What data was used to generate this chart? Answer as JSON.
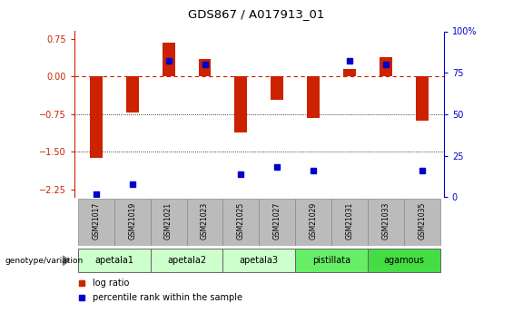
{
  "title": "GDS867 / A017913_01",
  "samples": [
    "GSM21017",
    "GSM21019",
    "GSM21021",
    "GSM21023",
    "GSM21025",
    "GSM21027",
    "GSM21029",
    "GSM21031",
    "GSM21033",
    "GSM21035"
  ],
  "log_ratio": [
    -1.62,
    -0.72,
    0.68,
    0.35,
    -1.12,
    -0.47,
    -0.82,
    0.15,
    0.38,
    -0.88
  ],
  "percentile_rank": [
    2,
    8,
    82,
    80,
    14,
    18,
    16,
    82,
    80,
    16
  ],
  "groups": [
    {
      "name": "apetala1",
      "color": "#ccffcc",
      "samples": [
        0,
        1
      ]
    },
    {
      "name": "apetala2",
      "color": "#ccffcc",
      "samples": [
        2,
        3
      ]
    },
    {
      "name": "apetala3",
      "color": "#ccffcc",
      "samples": [
        4,
        5
      ]
    },
    {
      "name": "pistillata",
      "color": "#66ee66",
      "samples": [
        6,
        7
      ]
    },
    {
      "name": "agamous",
      "color": "#44dd44",
      "samples": [
        8,
        9
      ]
    }
  ],
  "ylim_left": [
    -2.4,
    0.9
  ],
  "ylim_right": [
    0,
    100
  ],
  "yticks_left": [
    0.75,
    0,
    -0.75,
    -1.5,
    -2.25
  ],
  "yticks_right": [
    100,
    75,
    50,
    25,
    0
  ],
  "bar_color": "#cc2200",
  "dot_color": "#0000cc",
  "background_color": "#ffffff",
  "sample_box_color": "#bbbbbb",
  "legend_labels": [
    "log ratio",
    "percentile rank within the sample"
  ],
  "legend_colors": [
    "#cc2200",
    "#0000cc"
  ],
  "bar_width": 0.35
}
